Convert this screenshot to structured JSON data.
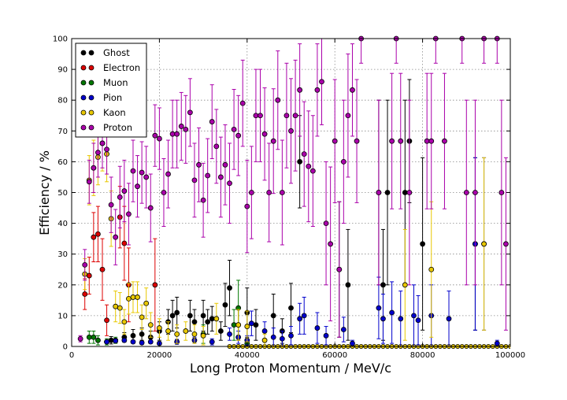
{
  "chart_data": {
    "type": "scatter",
    "title": "",
    "xlabel": "Long Proton Momentum / MeV/c",
    "ylabel": "Efficiency / %",
    "xlim": [
      0,
      100000
    ],
    "ylim": [
      0,
      100
    ],
    "grid": true,
    "x_ticks": [
      "0",
      "20000",
      "40000",
      "60000",
      "80000",
      "100000"
    ],
    "y_ticks": [
      "0",
      "10",
      "20",
      "30",
      "40",
      "50",
      "60",
      "70",
      "80",
      "90",
      "100"
    ],
    "legend_position": "top-left",
    "series": [
      {
        "name": "Ghost",
        "color": "#000000",
        "points": [
          [
            9000,
            2,
            1.2
          ],
          [
            12000,
            3,
            1.5
          ],
          [
            14000,
            3.5,
            2
          ],
          [
            16000,
            4,
            2
          ],
          [
            18000,
            3,
            2
          ],
          [
            20000,
            5,
            3
          ],
          [
            22000,
            8,
            4
          ],
          [
            23000,
            10,
            5
          ],
          [
            24000,
            11,
            5
          ],
          [
            27000,
            10,
            5
          ],
          [
            28000,
            8,
            4
          ],
          [
            30000,
            10,
            5
          ],
          [
            31000,
            8,
            4
          ],
          [
            32000,
            9,
            4
          ],
          [
            34000,
            5,
            3
          ],
          [
            35000,
            13.5,
            7
          ],
          [
            36000,
            19,
            9
          ],
          [
            38000,
            7,
            5
          ],
          [
            40000,
            11,
            8
          ],
          [
            42000,
            7,
            5
          ],
          [
            46000,
            10,
            7
          ],
          [
            48000,
            5,
            4
          ],
          [
            50000,
            12.5,
            8
          ],
          [
            52000,
            60,
            15
          ],
          [
            61000,
            25,
            22
          ],
          [
            63000,
            20,
            18
          ],
          [
            70000,
            50,
            30
          ],
          [
            71000,
            20,
            18
          ],
          [
            72000,
            50,
            30
          ],
          [
            76000,
            50,
            30
          ],
          [
            77000,
            66.7,
            20
          ],
          [
            80000,
            33.3,
            28
          ],
          [
            92000,
            33.3,
            28
          ]
        ]
      },
      {
        "name": "Electron",
        "color": "#dd0000",
        "points": [
          [
            3000,
            17,
            5
          ],
          [
            4000,
            23,
            6
          ],
          [
            5000,
            35.5,
            8
          ],
          [
            6000,
            36.5,
            9
          ],
          [
            7000,
            25,
            10
          ],
          [
            8000,
            8.5,
            5
          ],
          [
            11000,
            42,
            10
          ],
          [
            12000,
            33.5,
            12
          ],
          [
            13000,
            20,
            12
          ],
          [
            19000,
            20,
            15
          ]
        ]
      },
      {
        "name": "Muon",
        "color": "#007700",
        "points": [
          [
            4000,
            3,
            2
          ],
          [
            5000,
            3,
            2
          ],
          [
            6000,
            2,
            1.5
          ],
          [
            8000,
            1.5,
            1
          ],
          [
            10000,
            2,
            1
          ],
          [
            30000,
            4,
            3
          ],
          [
            37000,
            7,
            5
          ],
          [
            38000,
            12.5,
            9
          ],
          [
            40000,
            1,
            1
          ]
        ]
      },
      {
        "name": "Pion",
        "color": "#0000cc",
        "points": [
          [
            8000,
            1.5,
            0.5
          ],
          [
            10000,
            1.8,
            0.5
          ],
          [
            12000,
            2,
            0.6
          ],
          [
            14000,
            1.5,
            0.5
          ],
          [
            16000,
            1.2,
            0.5
          ],
          [
            18000,
            1.5,
            0.5
          ],
          [
            20000,
            1,
            0.5
          ],
          [
            24000,
            1.5,
            0.8
          ],
          [
            28000,
            2,
            1
          ],
          [
            32000,
            1.5,
            1
          ],
          [
            36000,
            4,
            2
          ],
          [
            38000,
            3,
            2
          ],
          [
            40000,
            2,
            1.5
          ],
          [
            41000,
            7.5,
            4
          ],
          [
            44000,
            5,
            3
          ],
          [
            46000,
            3,
            3
          ],
          [
            48000,
            2.5,
            2.5
          ],
          [
            50000,
            3.5,
            3
          ],
          [
            52000,
            9,
            5
          ],
          [
            53000,
            10,
            6
          ],
          [
            56000,
            6,
            5
          ],
          [
            58000,
            3.5,
            3
          ],
          [
            62000,
            5.5,
            4
          ],
          [
            64000,
            1,
            1
          ],
          [
            70000,
            12.5,
            10
          ],
          [
            71000,
            9,
            8
          ],
          [
            73000,
            11,
            10
          ],
          [
            75000,
            9,
            9
          ],
          [
            78000,
            10,
            10
          ],
          [
            79000,
            8.5,
            8
          ],
          [
            82000,
            10,
            10
          ],
          [
            86000,
            9,
            9
          ],
          [
            92000,
            33.3,
            28
          ],
          [
            94000,
            33.3,
            28
          ],
          [
            97000,
            1,
            1
          ]
        ]
      },
      {
        "name": "Kaon",
        "color": "#e8c800",
        "points": [
          [
            3000,
            23.5,
            5
          ],
          [
            4000,
            54,
            8
          ],
          [
            5000,
            58,
            9
          ],
          [
            6000,
            61.5,
            9
          ],
          [
            7000,
            66,
            9
          ],
          [
            8000,
            62.5,
            9
          ],
          [
            9000,
            41.5,
            9
          ],
          [
            10000,
            13,
            5
          ],
          [
            11000,
            12.5,
            5
          ],
          [
            12000,
            8,
            4
          ],
          [
            13000,
            15.5,
            5
          ],
          [
            14000,
            16,
            5
          ],
          [
            15000,
            16,
            5
          ],
          [
            16000,
            9.5,
            4
          ],
          [
            17000,
            14,
            5
          ],
          [
            18000,
            7,
            4
          ],
          [
            20000,
            6,
            3
          ],
          [
            22000,
            5,
            3
          ],
          [
            24000,
            4,
            3
          ],
          [
            26000,
            5,
            3
          ],
          [
            28000,
            4,
            3
          ],
          [
            30000,
            3.5,
            3
          ],
          [
            33000,
            9,
            5
          ],
          [
            38000,
            7,
            5
          ],
          [
            40000,
            6.5,
            5
          ],
          [
            44000,
            2,
            2
          ],
          [
            76000,
            20,
            18
          ],
          [
            82000,
            25,
            22
          ],
          [
            94000,
            33.3,
            28
          ]
        ]
      },
      {
        "name": "Proton",
        "color": "#aa00aa",
        "points": [
          [
            2000,
            2.5,
            1
          ],
          [
            3000,
            26.5,
            5
          ],
          [
            4000,
            53.5,
            7
          ],
          [
            5000,
            58,
            8
          ],
          [
            6000,
            63,
            8
          ],
          [
            7000,
            66,
            8
          ],
          [
            8000,
            64,
            8
          ],
          [
            9000,
            46,
            9
          ],
          [
            10000,
            35.5,
            9
          ],
          [
            11000,
            48.5,
            10
          ],
          [
            12000,
            50.5,
            10
          ],
          [
            13000,
            43,
            10
          ],
          [
            14000,
            57,
            10
          ],
          [
            15000,
            52,
            10
          ],
          [
            16000,
            56.5,
            10
          ],
          [
            17000,
            55,
            10
          ],
          [
            18000,
            45,
            11
          ],
          [
            19000,
            68.5,
            10
          ],
          [
            20000,
            67.5,
            10
          ],
          [
            21000,
            50,
            11
          ],
          [
            22000,
            56,
            11
          ],
          [
            23000,
            69,
            11
          ],
          [
            24000,
            69,
            11
          ],
          [
            25000,
            71.5,
            11
          ],
          [
            26000,
            70.5,
            11
          ],
          [
            27000,
            76,
            11
          ],
          [
            28000,
            54,
            12
          ],
          [
            29000,
            59,
            12
          ],
          [
            30000,
            47.5,
            12
          ],
          [
            31000,
            55.5,
            12
          ],
          [
            32000,
            73,
            12
          ],
          [
            33000,
            65,
            12
          ],
          [
            34000,
            55,
            13
          ],
          [
            35000,
            59,
            13
          ],
          [
            36000,
            53,
            13
          ],
          [
            37000,
            70.5,
            13
          ],
          [
            38000,
            68.5,
            13
          ],
          [
            39000,
            79,
            14
          ],
          [
            40000,
            45.5,
            15
          ],
          [
            41000,
            50,
            15
          ],
          [
            42000,
            75,
            15
          ],
          [
            43000,
            75,
            15
          ],
          [
            44000,
            69,
            15
          ],
          [
            45000,
            50,
            16
          ],
          [
            46000,
            66.7,
            17
          ],
          [
            47000,
            80,
            16
          ],
          [
            48000,
            50,
            17
          ],
          [
            49000,
            75,
            17
          ],
          [
            50000,
            70,
            17
          ],
          [
            51000,
            75,
            18
          ],
          [
            52000,
            83.3,
            15
          ],
          [
            53000,
            62.5,
            17
          ],
          [
            54000,
            58.5,
            18
          ],
          [
            55000,
            57,
            18
          ],
          [
            56000,
            83.3,
            15
          ],
          [
            57000,
            86,
            14
          ],
          [
            58000,
            40,
            20
          ],
          [
            59000,
            33.3,
            25
          ],
          [
            60000,
            66.7,
            20
          ],
          [
            61000,
            25,
            22
          ],
          [
            62000,
            60,
            20
          ],
          [
            63000,
            75,
            20
          ],
          [
            64000,
            83.3,
            15
          ],
          [
            65000,
            66.7,
            20
          ],
          [
            66000,
            100,
            8
          ],
          [
            70000,
            50,
            30
          ],
          [
            73000,
            66.7,
            22
          ],
          [
            74000,
            100,
            8
          ],
          [
            75000,
            66.7,
            22
          ],
          [
            77000,
            50,
            30
          ],
          [
            81000,
            66.7,
            22
          ],
          [
            82000,
            66.7,
            22
          ],
          [
            83000,
            100,
            8
          ],
          [
            85000,
            66.7,
            22
          ],
          [
            89000,
            100,
            8
          ],
          [
            90000,
            50,
            30
          ],
          [
            92000,
            50,
            30
          ],
          [
            94000,
            100,
            8
          ],
          [
            97000,
            100,
            8
          ],
          [
            98000,
            50,
            30
          ],
          [
            99000,
            33.3,
            28
          ]
        ]
      }
    ],
    "zero_points": {
      "color": "#e8c800",
      "x_start": 36000,
      "x_end": 100000,
      "step": 1000,
      "value": 0
    }
  }
}
